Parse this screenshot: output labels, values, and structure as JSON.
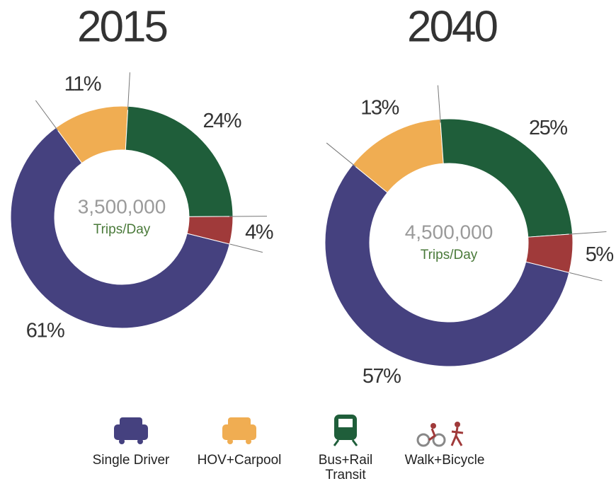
{
  "chart_data": [
    {
      "type": "pie",
      "title": "2015",
      "center_value": "3,500,000",
      "center_label": "Trips/Day",
      "categories": [
        "Single Driver",
        "HOV+Carpool",
        "Bus+Rail Transit",
        "Walk+Bicycle"
      ],
      "values": [
        61,
        11,
        24,
        4
      ],
      "value_labels": [
        "61%",
        "11%",
        "24%",
        "4%"
      ],
      "colors": [
        "#45417f",
        "#f0ad52",
        "#1f5e3a",
        "#a03a3a"
      ]
    },
    {
      "type": "pie",
      "title": "2040",
      "center_value": "4,500,000",
      "center_label": "Trips/Day",
      "categories": [
        "Single Driver",
        "HOV+Carpool",
        "Bus+Rail Transit",
        "Walk+Bicycle"
      ],
      "values": [
        57,
        13,
        25,
        5
      ],
      "value_labels": [
        "57%",
        "13%",
        "25%",
        "5%"
      ],
      "colors": [
        "#45417f",
        "#f0ad52",
        "#1f5e3a",
        "#a03a3a"
      ]
    }
  ]
}
